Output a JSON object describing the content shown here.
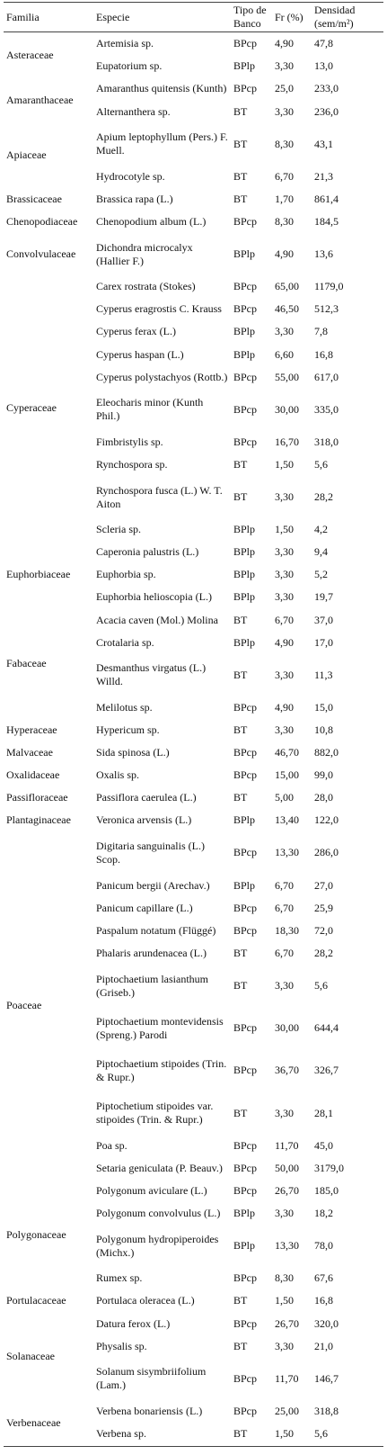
{
  "table": {
    "header": [
      "Familia",
      "Especie",
      "Tipo de Banco",
      "Fr (%)",
      "Densidad (sem/m²)"
    ],
    "families": [
      {
        "name": "Asteraceae",
        "species": [
          [
            "Artemisia sp.",
            "BPcp",
            "4,90",
            "47,8"
          ],
          [
            "Eupatorium sp.",
            "BPlp",
            "3,30",
            "13,0"
          ]
        ]
      },
      {
        "name": "Amaranthaceae",
        "species": [
          [
            "Amaranthus quitensis (Kunth)",
            "BPcp",
            "25,0",
            "233,0"
          ],
          [
            "Alternanthera sp.",
            "BT",
            "3,30",
            "236,0"
          ]
        ]
      },
      {
        "name": "Apiaceae",
        "species": [
          [
            "Apium leptophyllum (Pers.) F. Muell.",
            "BT",
            "8,30",
            "43,1"
          ],
          [
            "Hydrocotyle sp.",
            "BT",
            "6,70",
            "21,3"
          ]
        ]
      },
      {
        "name": "Brassicaceae",
        "species": [
          [
            "Brassica rapa (L.)",
            "BT",
            "1,70",
            "861,4"
          ]
        ]
      },
      {
        "name": "Chenopodiaceae",
        "species": [
          [
            "Chenopodium album (L.)",
            "BPcp",
            "8,30",
            "184,5"
          ]
        ]
      },
      {
        "name": "Convolvulaceae",
        "species": [
          [
            "Dichondra microcalyx (Hallier F.)",
            "BPlp",
            "4,90",
            "13,6"
          ]
        ]
      },
      {
        "name": "Cyperaceae",
        "species": [
          [
            "Carex rostrata (Stokes)",
            "BPcp",
            "65,00",
            "1179,0"
          ],
          [
            "Cyperus eragrostis C. Krauss",
            "BPcp",
            "46,50",
            "512,3"
          ],
          [
            "Cyperus ferax (L.)",
            "BPlp",
            "3,30",
            "7,8"
          ],
          [
            "Cyperus haspan (L.)",
            "BPlp",
            "6,60",
            "16,8"
          ],
          [
            "Cyperus polystachyos (Rottb.)",
            "BPcp",
            "55,00",
            "617,0"
          ],
          [
            "Eleocharis minor (Kunth Phil.)",
            "BPcp",
            "30,00",
            "335,0"
          ],
          [
            "Fimbristylis sp.",
            "BPcp",
            "16,70",
            "318,0"
          ],
          [
            "Rynchospora sp.",
            "BT",
            "1,50",
            "5,6"
          ],
          [
            "Rynchospora fusca (L.) W. T. Aiton",
            "BT",
            "3,30",
            "28,2"
          ],
          [
            "Scleria sp.",
            "BPlp",
            "1,50",
            "4,2"
          ]
        ]
      },
      {
        "name": "Euphorbiaceae",
        "species": [
          [
            "Caperonia palustris (L.)",
            "BPlp",
            "3,30",
            "9,4"
          ],
          [
            "Euphorbia sp.",
            "BPlp",
            "3,30",
            "5,2"
          ],
          [
            "Euphorbia helioscopia (L.)",
            "BPlp",
            "3,30",
            "19,7"
          ]
        ]
      },
      {
        "name": "Fabaceae",
        "species": [
          [
            "Acacia caven (Mol.) Molina",
            "BT",
            "6,70",
            "37,0"
          ],
          [
            "Crotalaria sp.",
            "BPlp",
            "4,90",
            "17,0"
          ],
          [
            "Desmanthus virgatus (L.) Willd.",
            "BT",
            "3,30",
            "11,3"
          ],
          [
            "Melilotus sp.",
            "BPcp",
            "4,90",
            "15,0"
          ]
        ]
      },
      {
        "name": "Hyperaceae",
        "species": [
          [
            "Hypericum sp.",
            "BT",
            "3,30",
            "10,8"
          ]
        ]
      },
      {
        "name": "Malvaceae",
        "species": [
          [
            "Sida spinosa (L.)",
            "BPcp",
            "46,70",
            "882,0"
          ]
        ]
      },
      {
        "name": "Oxalidaceae",
        "species": [
          [
            "Oxalis sp.",
            "BPcp",
            "15,00",
            "99,0"
          ]
        ]
      },
      {
        "name": "Passifloraceae",
        "species": [
          [
            "Passiflora caerulea (L.)",
            "BT",
            "5,00",
            "28,0"
          ]
        ]
      },
      {
        "name": "Plantaginaceae",
        "species": [
          [
            "Veronica arvensis (L.)",
            "BPlp",
            "13,40",
            "122,0"
          ]
        ]
      },
      {
        "name": "Poaceae",
        "species": [
          [
            "Digitaria sanguinalis (L.) Scop.",
            "BPcp",
            "13,30",
            "286,0"
          ],
          [
            "Panicum bergii (Arechav.)",
            "BPlp",
            "6,70",
            "27,0"
          ],
          [
            "Panicum capillare (L.)",
            "BPcp",
            "6,70",
            "25,9"
          ],
          [
            "Paspalum notatum (Flüggé)",
            "BPcp",
            "18,30",
            "72,0"
          ],
          [
            "Phalaris arundenacea (L.)",
            "BT",
            "6,70",
            "28,2"
          ],
          [
            "Piptochaetium lasianthum (Griseb.)",
            "BT",
            "3,30",
            "5,6"
          ],
          [
            "Piptochaetium montevidensis (Spreng.) Parodi",
            "BPcp",
            "30,00",
            "644,4"
          ],
          [
            "Piptochaetium stipoides (Trin. & Rupr.)",
            "BPcp",
            "36,70",
            "326,7"
          ],
          [
            "Piptochetium stipoides var. stipoides (Trin. & Rupr.)",
            "BT",
            "3,30",
            "28,1"
          ],
          [
            "Poa sp.",
            "BPcp",
            "11,70",
            "45,0"
          ],
          [
            "Setaria geniculata (P. Beauv.)",
            "BPcp",
            "50,00",
            "3179,0"
          ]
        ]
      },
      {
        "name": "Polygonaceae",
        "species": [
          [
            "Polygonum aviculare (L.)",
            "BPcp",
            "26,70",
            "185,0"
          ],
          [
            "Polygonum convolvulus (L.)",
            "BPlp",
            "3,30",
            "18,2"
          ],
          [
            "Polygonum hydropiperoides (Michx.)",
            "BPlp",
            "13,30",
            "78,0"
          ],
          [
            "Rumex sp.",
            "BPcp",
            "8,30",
            "67,6"
          ]
        ]
      },
      {
        "name": "Portulacaceae",
        "species": [
          [
            "Portulaca oleracea (L.)",
            "BT",
            "1,50",
            "16,8"
          ]
        ]
      },
      {
        "name": "Solanaceae",
        "species": [
          [
            "Datura ferox (L.)",
            "BPcp",
            "26,70",
            "320,0"
          ],
          [
            "Physalis sp.",
            "BT",
            "3,30",
            "21,0"
          ],
          [
            "Solanum sisymbriifolium (Lam.)",
            "BPcp",
            "11,70",
            "146,7"
          ]
        ]
      },
      {
        "name": "Verbenaceae",
        "species": [
          [
            "Verbena bonariensis (L.)",
            "BPcp",
            "25,00",
            "318,8"
          ],
          [
            "Verbena sp.",
            "BT",
            "1,50",
            "5,6"
          ]
        ]
      }
    ]
  }
}
